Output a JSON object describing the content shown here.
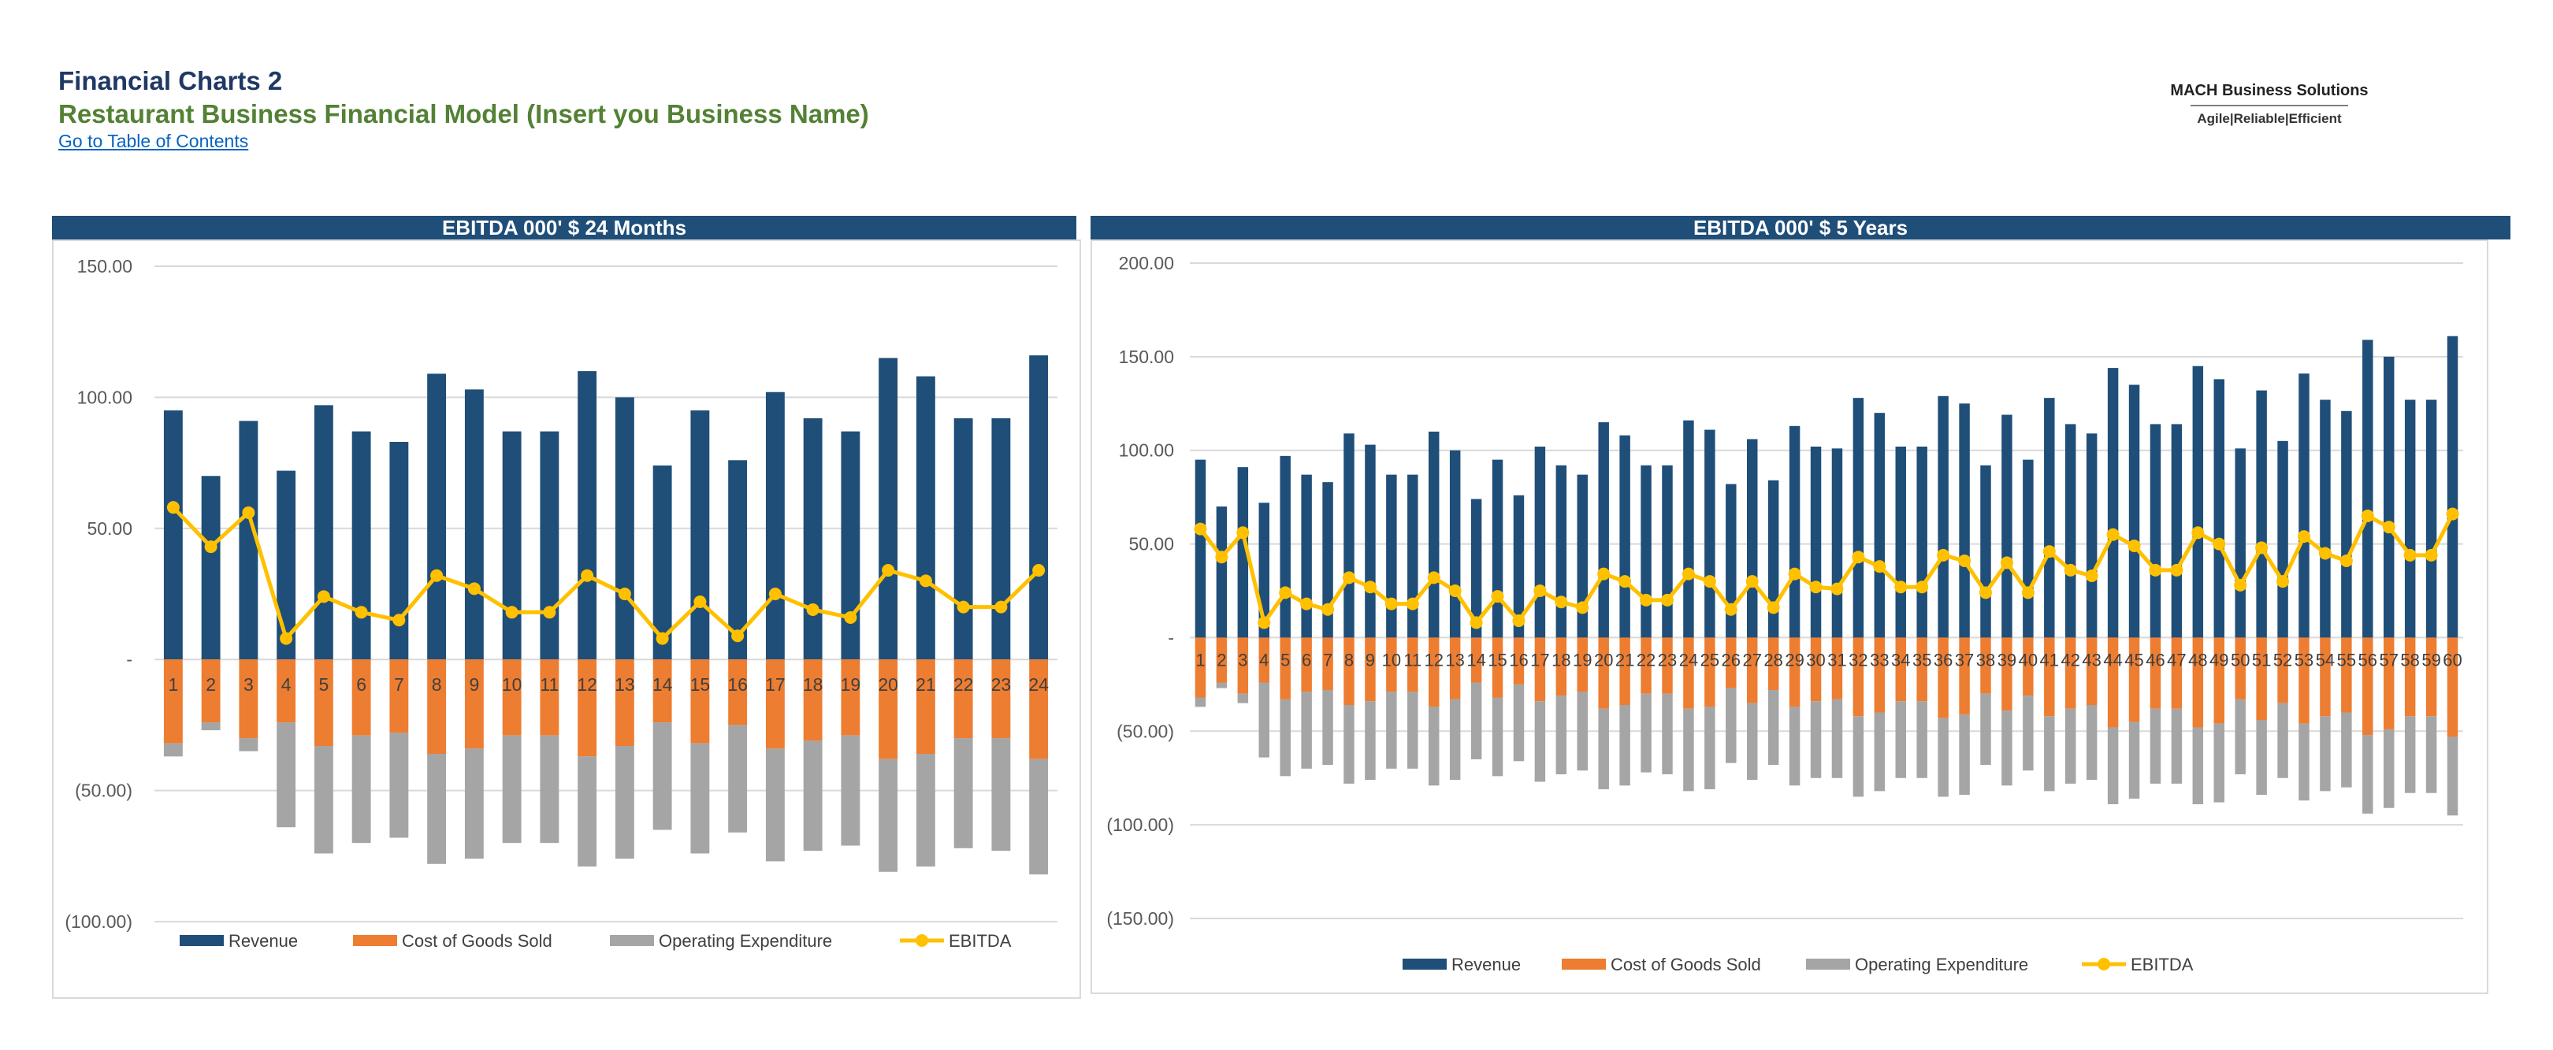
{
  "header": {
    "title": "Financial Charts 2",
    "subtitle": "Restaurant Business Financial Model (Insert you Business Name)",
    "toc_link": "Go to Table of Contents"
  },
  "logo": {
    "name": "MACH Business Solutions",
    "tagline": "Agile|Reliable|Efficient"
  },
  "colors": {
    "banner": "#1f4e79",
    "revenue": "#1f4e79",
    "cogs": "#ed7d31",
    "opex": "#a5a5a5",
    "ebitda": "#ffc000"
  },
  "chart_data": [
    {
      "type": "bar",
      "title": "EBITDA 000' $ 24 Months",
      "stacked": true,
      "categories": [
        "1",
        "2",
        "3",
        "4",
        "5",
        "6",
        "7",
        "8",
        "9",
        "10",
        "11",
        "12",
        "13",
        "14",
        "15",
        "16",
        "17",
        "18",
        "19",
        "20",
        "21",
        "22",
        "23",
        "24"
      ],
      "series": [
        {
          "name": "Revenue",
          "type": "bar",
          "values": [
            95,
            70,
            91,
            72,
            97,
            87,
            83,
            109,
            103,
            87,
            87,
            110,
            100,
            74,
            95,
            76,
            102,
            92,
            87,
            115,
            108,
            92,
            92,
            116
          ]
        },
        {
          "name": "Cost of Goods Sold",
          "type": "bar",
          "values": [
            -32,
            -24,
            -30,
            -24,
            -33,
            -29,
            -28,
            -36,
            -34,
            -29,
            -29,
            -37,
            -33,
            -24,
            -32,
            -25,
            -34,
            -31,
            -29,
            -38,
            -36,
            -30,
            -30,
            -38
          ]
        },
        {
          "name": "Operating Expenditure",
          "type": "bar",
          "values": [
            -5,
            -3,
            -5,
            -40,
            -41,
            -41,
            -40,
            -42,
            -42,
            -41,
            -41,
            -42,
            -43,
            -41,
            -42,
            -41,
            -43,
            -42,
            -42,
            -43,
            -43,
            -42,
            -43,
            -44
          ]
        },
        {
          "name": "EBITDA",
          "type": "line",
          "values": [
            58,
            43,
            56,
            8,
            24,
            18,
            15,
            32,
            27,
            18,
            18,
            32,
            25,
            8,
            22,
            9,
            25,
            19,
            16,
            34,
            30,
            20,
            20,
            34
          ]
        }
      ],
      "yticks": [
        "150.00",
        "100.00",
        "50.00",
        "-",
        "(50.00)",
        "(100.00)"
      ],
      "ylim": [
        -100,
        150
      ],
      "legend": "bottom",
      "grid": true
    },
    {
      "type": "bar",
      "title": "EBITDA 000' $ 5 Years",
      "stacked": true,
      "categories": [
        "1",
        "2",
        "3",
        "4",
        "5",
        "6",
        "7",
        "8",
        "9",
        "10",
        "11",
        "12",
        "13",
        "14",
        "15",
        "16",
        "17",
        "18",
        "19",
        "20",
        "21",
        "22",
        "23",
        "24",
        "25",
        "26",
        "27",
        "28",
        "29",
        "30",
        "31",
        "32",
        "33",
        "34",
        "35",
        "36",
        "37",
        "38",
        "39",
        "40",
        "41",
        "42",
        "43",
        "44",
        "45",
        "46",
        "47",
        "48",
        "49",
        "50",
        "51",
        "52",
        "53",
        "54",
        "55",
        "56",
        "57",
        "58",
        "59",
        "60"
      ],
      "series": [
        {
          "name": "Revenue",
          "type": "bar",
          "values": [
            95,
            70,
            91,
            72,
            97,
            87,
            83,
            109,
            103,
            87,
            87,
            110,
            100,
            74,
            95,
            76,
            102,
            92,
            87,
            115,
            108,
            92,
            92,
            116,
            111,
            82,
            106,
            84,
            113,
            102,
            101,
            128,
            120,
            102,
            102,
            129,
            125,
            92,
            119,
            95,
            128,
            114,
            109,
            144,
            135,
            114,
            114,
            145,
            138,
            101,
            132,
            105,
            141,
            127,
            121,
            159,
            150,
            127,
            127,
            161
          ]
        },
        {
          "name": "Cost of Goods Sold",
          "type": "bar",
          "values": [
            -32,
            -24,
            -30,
            -24,
            -33,
            -29,
            -28,
            -36,
            -34,
            -29,
            -29,
            -37,
            -33,
            -24,
            -32,
            -25,
            -34,
            -31,
            -29,
            -38,
            -36,
            -30,
            -30,
            -38,
            -37,
            -27,
            -35,
            -28,
            -37,
            -34,
            -33,
            -42,
            -40,
            -34,
            -34,
            -43,
            -41,
            -30,
            -39,
            -31,
            -42,
            -38,
            -36,
            -48,
            -45,
            -38,
            -38,
            -48,
            -46,
            -33,
            -44,
            -35,
            -46,
            -42,
            -40,
            -52,
            -49,
            -42,
            -42,
            -53
          ]
        },
        {
          "name": "Operating Expenditure",
          "type": "bar",
          "values": [
            -5,
            -3,
            -5,
            -40,
            -41,
            -41,
            -40,
            -42,
            -42,
            -41,
            -41,
            -42,
            -43,
            -41,
            -42,
            -41,
            -43,
            -42,
            -42,
            -43,
            -43,
            -42,
            -43,
            -44,
            -44,
            -40,
            -41,
            -40,
            -42,
            -41,
            -42,
            -43,
            -42,
            -41,
            -41,
            -42,
            -43,
            -38,
            -40,
            -40,
            -40,
            -40,
            -40,
            -41,
            -41,
            -40,
            -40,
            -41,
            -42,
            -40,
            -40,
            -40,
            -41,
            -40,
            -40,
            -42,
            -42,
            -41,
            -41,
            -42
          ]
        },
        {
          "name": "EBITDA",
          "type": "line",
          "values": [
            58,
            43,
            56,
            8,
            24,
            18,
            15,
            32,
            27,
            18,
            18,
            32,
            25,
            8,
            22,
            9,
            25,
            19,
            16,
            34,
            30,
            20,
            20,
            34,
            30,
            15,
            30,
            16,
            34,
            27,
            26,
            43,
            38,
            27,
            27,
            44,
            41,
            24,
            40,
            24,
            46,
            36,
            33,
            55,
            49,
            36,
            36,
            56,
            50,
            28,
            48,
            30,
            54,
            45,
            41,
            65,
            59,
            44,
            44,
            66
          ]
        }
      ],
      "yticks": [
        "200.00",
        "150.00",
        "100.00",
        "50.00",
        "-",
        "(50.00)",
        "(100.00)",
        "(150.00)"
      ],
      "ylim": [
        -150,
        200
      ],
      "legend": "bottom",
      "grid": true
    }
  ]
}
